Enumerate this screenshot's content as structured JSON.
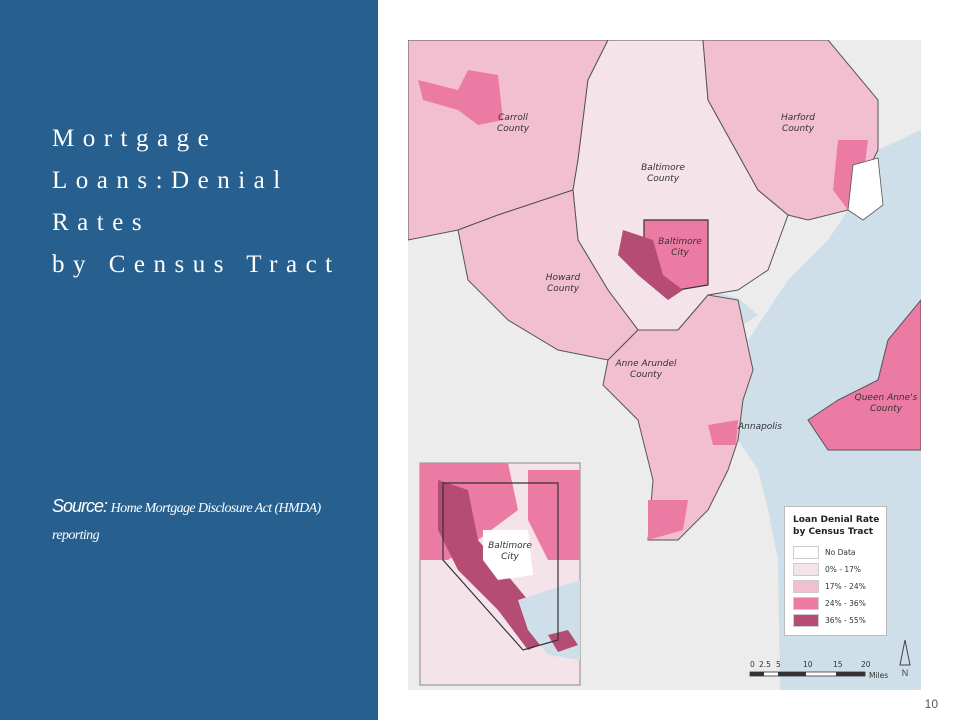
{
  "slide": {
    "title_lines": [
      "Mortgage",
      "Loans:Denial",
      "Rates",
      "by Census Tract"
    ],
    "source_label": "Source:",
    "source_text": "Home Mortgage Disclosure Act (HMDA) reporting",
    "page_number": "10"
  },
  "map": {
    "labels": {
      "carroll": [
        "Carroll",
        "County"
      ],
      "harford": [
        "Harford",
        "County"
      ],
      "baltimore_county": [
        "Baltimore",
        "County"
      ],
      "baltimore_city": [
        "Baltimore",
        "City"
      ],
      "howard": [
        "Howard",
        "County"
      ],
      "anne_arundel": [
        "Anne Arundel",
        "County"
      ],
      "annapolis": "Annapolis",
      "queen_annes": [
        "Queen Anne's",
        "County"
      ],
      "inset_city": [
        "Baltimore",
        "City"
      ]
    },
    "legend": {
      "title_lines": [
        "Loan Denial Rate",
        "by Census Tract"
      ],
      "items": [
        {
          "label": "No Data",
          "color": "#ffffff"
        },
        {
          "label": "0% - 17%",
          "color": "#f4e4ea"
        },
        {
          "label": "17% - 24%",
          "color": "#f2bfd1"
        },
        {
          "label": "24% - 36%",
          "color": "#ec7ba4"
        },
        {
          "label": "36% - 55%",
          "color": "#b54c74"
        }
      ]
    },
    "scale": {
      "ticks": [
        "0",
        "2.5",
        "5",
        "10",
        "15",
        "20"
      ],
      "unit": "Miles"
    },
    "north_label": "N",
    "colors": {
      "land": "#ececec",
      "water": "#cfdfe9",
      "border": "#555555"
    }
  }
}
